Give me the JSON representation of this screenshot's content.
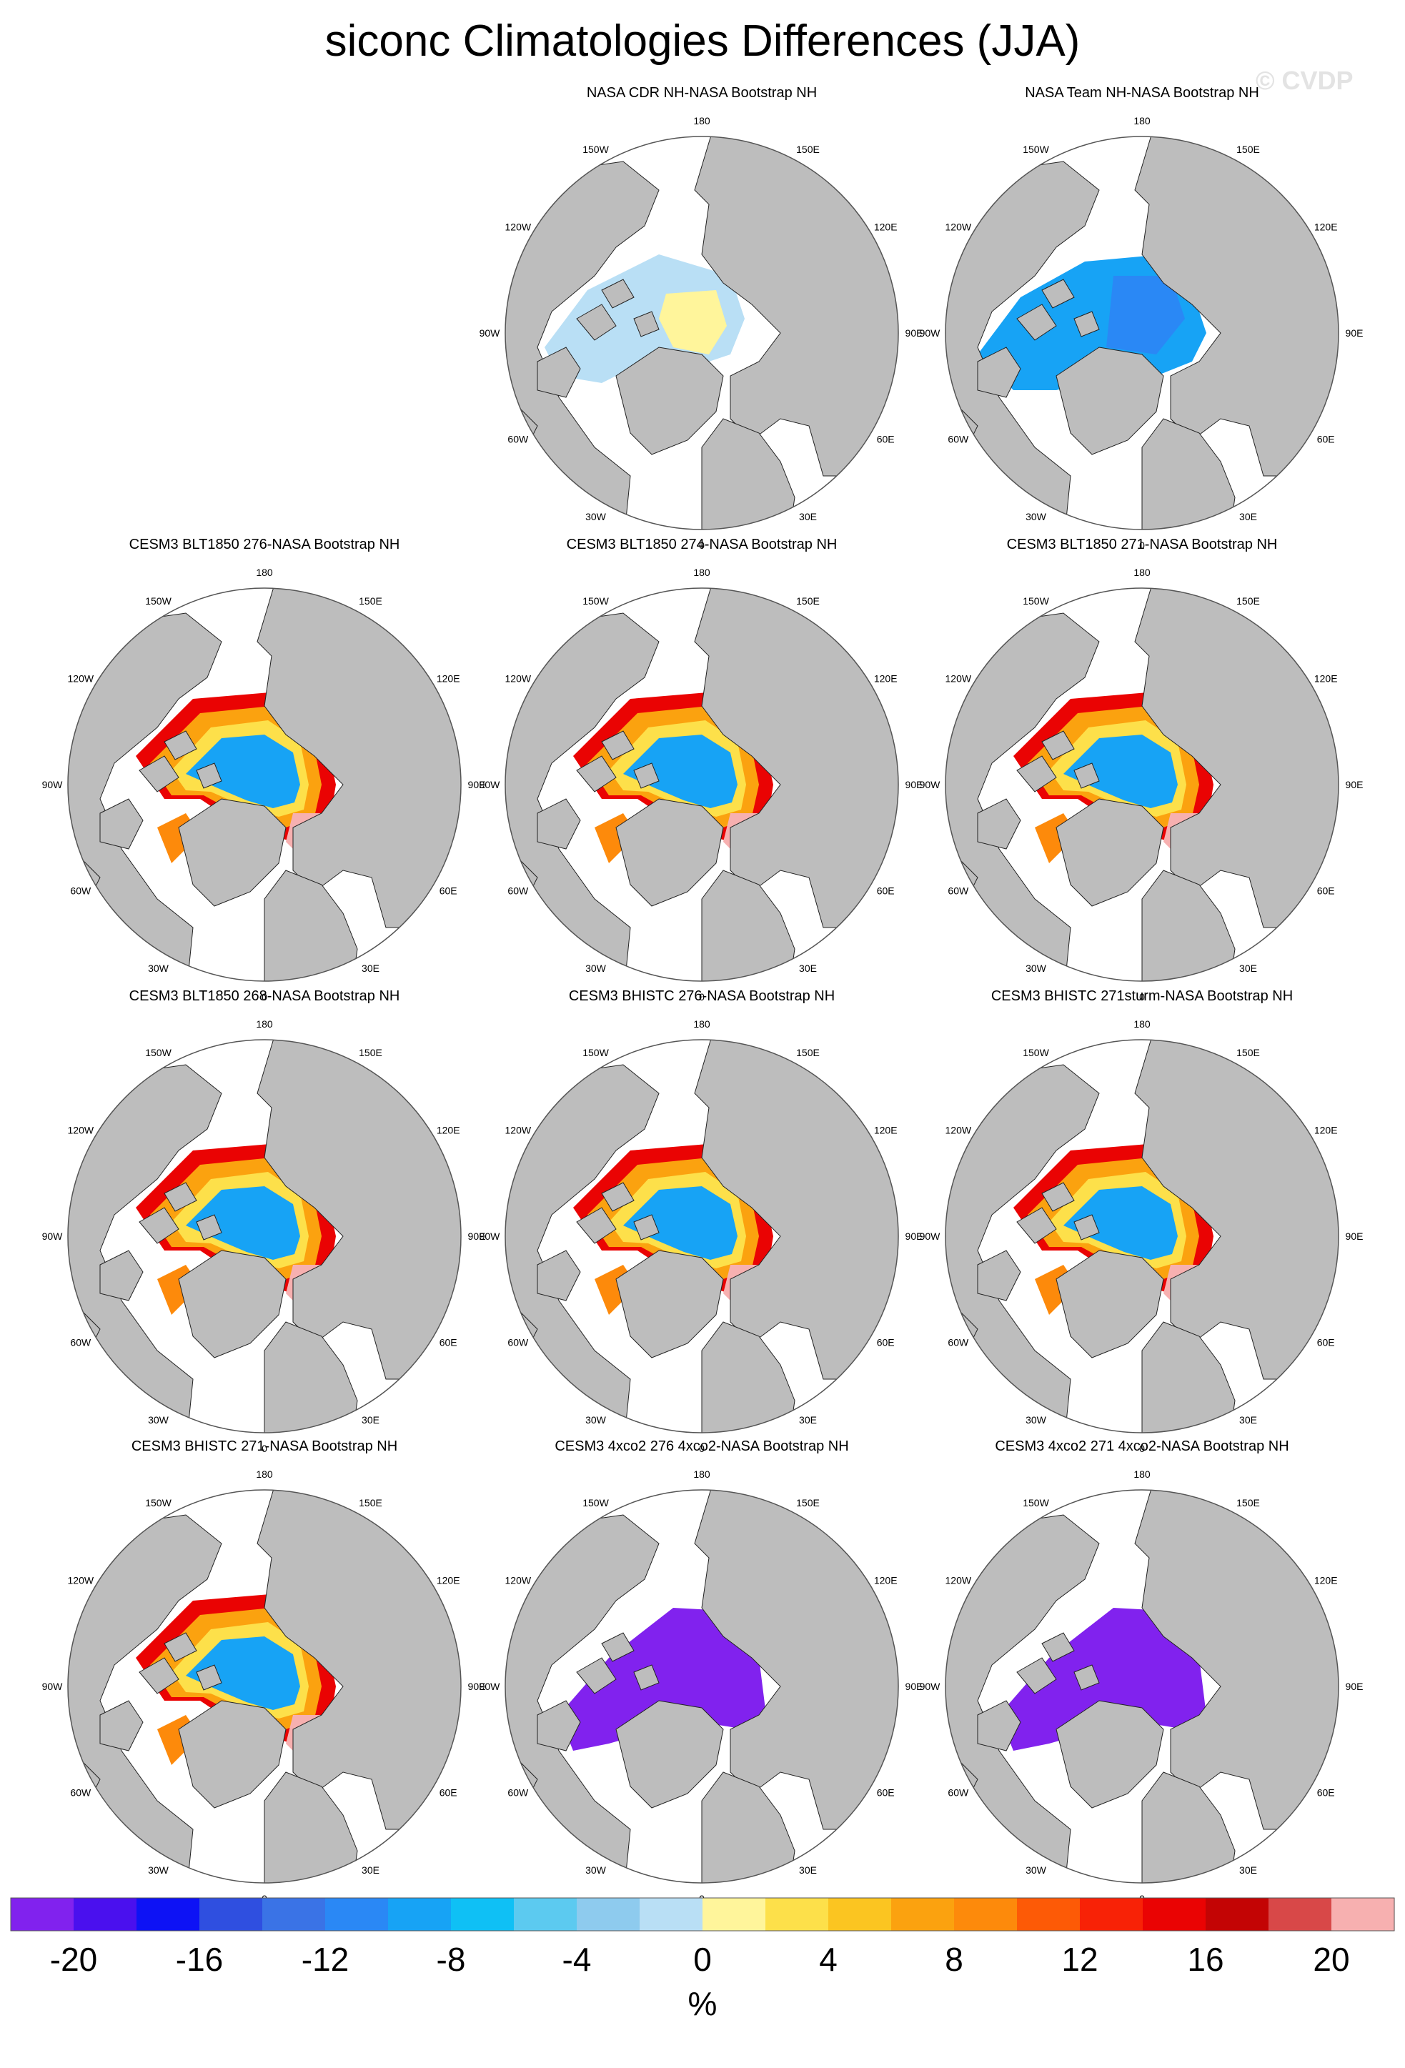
{
  "title": "siconc Climatologies Differences (JJA)",
  "watermark": "© CVDP",
  "map": {
    "projection": "north-polar-stereographic",
    "lon_labels": [
      "180",
      "150E",
      "120E",
      "90E",
      "60E",
      "30E",
      "0",
      "30W",
      "60W",
      "90W",
      "120W",
      "150W"
    ],
    "land_color": "#bdbdbd",
    "ocean_color": "#ffffff",
    "coast_color": "#222222"
  },
  "panels": [
    {
      "label": "NASA CDR NH-NASA Bootstrap NH",
      "pattern": "cdr"
    },
    {
      "label": "NASA Team NH-NASA Bootstrap NH",
      "pattern": "team"
    },
    {
      "label": "CESM3 BLT1850 276-NASA Bootstrap NH",
      "pattern": "model"
    },
    {
      "label": "CESM3 BLT1850 274-NASA Bootstrap NH",
      "pattern": "model"
    },
    {
      "label": "CESM3 BLT1850 271-NASA Bootstrap NH",
      "pattern": "model"
    },
    {
      "label": "CESM3 BLT1850 268-NASA Bootstrap NH",
      "pattern": "model"
    },
    {
      "label": "CESM3 BHISTC 276-NASA Bootstrap NH",
      "pattern": "model"
    },
    {
      "label": "CESM3 BHISTC 271sturm-NASA Bootstrap NH",
      "pattern": "model"
    },
    {
      "label": "CESM3 BHISTC 271-NASA Bootstrap NH",
      "pattern": "model"
    },
    {
      "label": "CESM3 4xco2 276 4xco2-NASA Bootstrap NH",
      "pattern": "4xco2"
    },
    {
      "label": "CESM3 4xco2 271 4xco2-NASA Bootstrap NH",
      "pattern": "4xco2"
    }
  ],
  "colorbar": {
    "unit": "%",
    "tick_labels": [
      "-20",
      "-16",
      "-12",
      "-8",
      "-4",
      "0",
      "4",
      "8",
      "12",
      "16",
      "20"
    ],
    "levels": [
      -22,
      -20,
      -18,
      -16,
      -14,
      -12,
      -10,
      -8,
      -6,
      -4,
      -2,
      0,
      2,
      4,
      6,
      8,
      10,
      12,
      14,
      16,
      18,
      20,
      22
    ],
    "colors": [
      "#8122ee",
      "#4a10ee",
      "#0d12f5",
      "#2f4fe0",
      "#3a73e6",
      "#2a88f5",
      "#17a3f5",
      "#0fc0f5",
      "#5ccaf0",
      "#8ecbee",
      "#b9dff5",
      "#fff59b",
      "#fde04a",
      "#fbc521",
      "#fba20f",
      "#fd8a0b",
      "#fd5a06",
      "#f82206",
      "#ea0303",
      "#c30404",
      "#d84848",
      "#f7b0b0"
    ]
  }
}
